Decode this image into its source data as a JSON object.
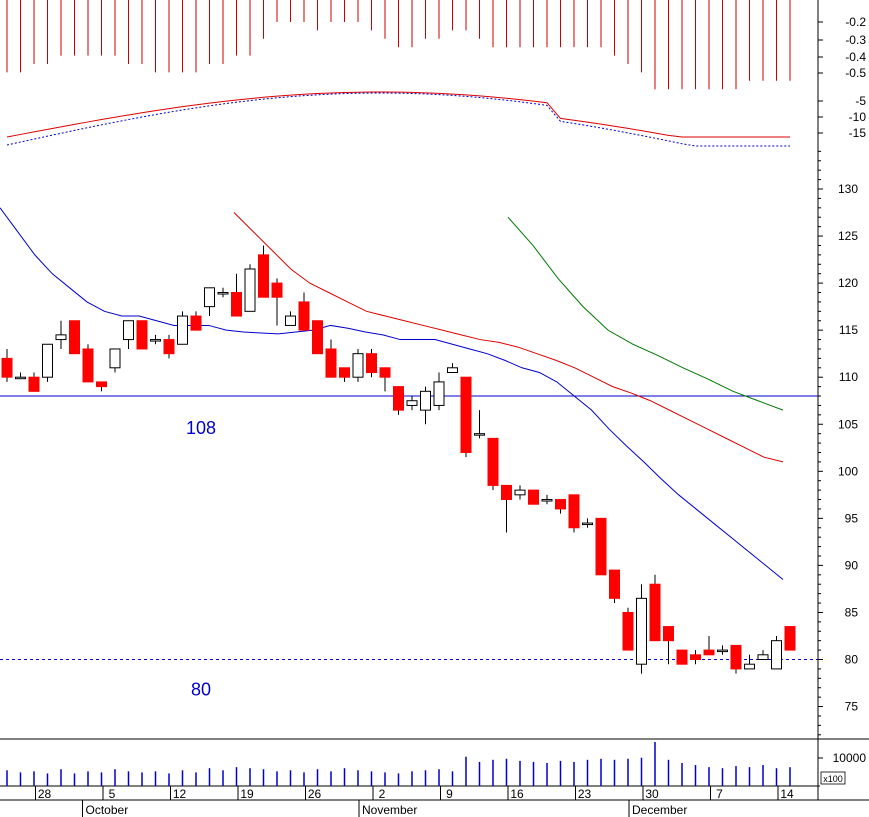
{
  "chart_data": {
    "type": "candlestick",
    "colors": {
      "down_fill": "#ff0000",
      "up_fill": "#ffffff",
      "outline": "#000000",
      "ma_short": "#0000cc",
      "ma_mid": "#dd0000",
      "ma_long": "#007700",
      "level_line": "#0000cc",
      "volume_bar": "#0000cc",
      "indicator_bar": "#cc0000"
    },
    "reference_lines": [
      {
        "value": 108,
        "label": "108",
        "style": "solid"
      },
      {
        "value": 80,
        "label": "80",
        "style": "dashed"
      }
    ],
    "price_axis": {
      "range": [
        71,
        146
      ],
      "ticks": [
        "130",
        "125",
        "120",
        "115",
        "110",
        "105",
        "100",
        "95",
        "90",
        "85",
        "80",
        "75"
      ]
    },
    "indicator_axis": {
      "ticks": [
        "-0.2",
        "-0.3",
        "-0.4",
        "-0.5",
        "-5",
        "-10",
        "-15"
      ]
    },
    "volume_axis": {
      "ticks": [
        "10000"
      ],
      "unit": "x100"
    },
    "x_axis": {
      "day_labels": [
        {
          "text": "28",
          "index": 3
        },
        {
          "text": "5",
          "index": 8
        },
        {
          "text": "12",
          "index": 13
        },
        {
          "text": "19",
          "index": 18
        },
        {
          "text": "26",
          "index": 23
        },
        {
          "text": "2",
          "index": 28
        },
        {
          "text": "9",
          "index": 33
        },
        {
          "text": "16",
          "index": 38
        },
        {
          "text": "23",
          "index": 43
        },
        {
          "text": "30",
          "index": 48
        },
        {
          "text": "7",
          "index": 53
        },
        {
          "text": "14",
          "index": 58
        }
      ],
      "month_labels": [
        {
          "text": "October",
          "index": 7
        },
        {
          "text": "November",
          "index": 28
        },
        {
          "text": "December",
          "index": 48
        }
      ]
    },
    "candles": [
      [
        112,
        113,
        109.5,
        110
      ],
      [
        110,
        110.5,
        110,
        110
      ],
      [
        110,
        110.5,
        108.5,
        108.5
      ],
      [
        110,
        113.5,
        109.5,
        113.5
      ],
      [
        114,
        116,
        113,
        114.5
      ],
      [
        116,
        116,
        112.5,
        112.5
      ],
      [
        113,
        113.5,
        109.5,
        109.5
      ],
      [
        109.5,
        109.5,
        108.5,
        109
      ],
      [
        111,
        113,
        110.5,
        113
      ],
      [
        114,
        116,
        113,
        116
      ],
      [
        116,
        116,
        113,
        113
      ],
      [
        114,
        114.5,
        113.5,
        114
      ],
      [
        114,
        114.5,
        112,
        112.5
      ],
      [
        113.5,
        117,
        113.5,
        116.5
      ],
      [
        116.5,
        117,
        115,
        115
      ],
      [
        117.5,
        119.5,
        116.5,
        119.5
      ],
      [
        119,
        119.5,
        118.5,
        119
      ],
      [
        119,
        121,
        116.5,
        116.5
      ],
      [
        117,
        122,
        117,
        121.5
      ],
      [
        123,
        124,
        118.5,
        118.5
      ],
      [
        120,
        120.5,
        115.5,
        118.5
      ],
      [
        115.5,
        117,
        115.5,
        116.5
      ],
      [
        118,
        119,
        115,
        115
      ],
      [
        116,
        116,
        112.5,
        112.5
      ],
      [
        113,
        114,
        110,
        110
      ],
      [
        111,
        111,
        109.5,
        110
      ],
      [
        110,
        113,
        109.5,
        112.5
      ],
      [
        112.5,
        113,
        110,
        110.5
      ],
      [
        111,
        111,
        108.5,
        110
      ],
      [
        109,
        109,
        106,
        106.5
      ],
      [
        107,
        108,
        106.5,
        107.5
      ],
      [
        106.5,
        109,
        105,
        108.5
      ],
      [
        107,
        110.5,
        106.5,
        109.5
      ],
      [
        110.5,
        111.5,
        110.5,
        111
      ],
      [
        110,
        110,
        101.5,
        102
      ],
      [
        104,
        106.5,
        103.5,
        104
      ],
      [
        103.5,
        103.5,
        98,
        98.5
      ],
      [
        98.5,
        98.5,
        93.5,
        97
      ],
      [
        97.5,
        98.5,
        97,
        98
      ],
      [
        98,
        98,
        96.5,
        96.5
      ],
      [
        97,
        97.5,
        96.5,
        97
      ],
      [
        97,
        97,
        95.5,
        96
      ],
      [
        97.5,
        97.5,
        93.5,
        94
      ],
      [
        94.5,
        95,
        94,
        94.5
      ],
      [
        95,
        95,
        89,
        89
      ],
      [
        89.5,
        89.5,
        86,
        86.5
      ],
      [
        85,
        85.5,
        81,
        81
      ],
      [
        79.5,
        88,
        78.5,
        86.5
      ],
      [
        88,
        89,
        82,
        82
      ],
      [
        83.5,
        83.5,
        79.5,
        82
      ],
      [
        81,
        81,
        79.5,
        79.5
      ],
      [
        80.5,
        81,
        79.5,
        80
      ],
      [
        81,
        82.5,
        80.5,
        80.5
      ],
      [
        81,
        81.5,
        80.5,
        81
      ],
      [
        81.5,
        81.5,
        78.5,
        79
      ],
      [
        79,
        80.5,
        79,
        79.5
      ],
      [
        80,
        81,
        80,
        80.5
      ],
      [
        79,
        82.5,
        79,
        82
      ],
      [
        83.5,
        83.5,
        81,
        81
      ]
    ],
    "ma_short": [
      128,
      125.5,
      123,
      121,
      119.5,
      118,
      117,
      116.5,
      116.5,
      116,
      115.5,
      115.5,
      115.5,
      115,
      114.8,
      114.7,
      114.6,
      114.8,
      115,
      115.5,
      115.2,
      114.8,
      114.5,
      114,
      114,
      114,
      113.5,
      113,
      112.5,
      111.8,
      111,
      110.5,
      109.5,
      108,
      106.5,
      104.5,
      102.7,
      101,
      99.2,
      97.5,
      96,
      94.5,
      93,
      91.5,
      90,
      88.5
    ],
    "ma_mid": [
      127.5,
      125.5,
      123.5,
      121.5,
      120,
      119,
      118,
      117,
      116.5,
      116,
      115.5,
      115,
      114.5,
      114,
      113.7,
      113.2,
      112.5,
      111.8,
      111,
      110,
      109,
      108.3,
      107.5,
      106.5,
      105.5,
      104.5,
      103.5,
      102.5,
      101.5,
      101
    ],
    "ma_long": [
      127,
      124,
      120.5,
      117.5,
      115,
      113.5,
      112.3,
      111,
      109.8,
      108.5,
      107.5,
      106.5
    ],
    "indicator_bars": [
      -0.5,
      -0.5,
      -0.45,
      -0.45,
      -0.4,
      -0.4,
      -0.4,
      -0.4,
      -0.4,
      -0.45,
      -0.45,
      -0.5,
      -0.5,
      -0.5,
      -0.5,
      -0.45,
      -0.45,
      -0.4,
      -0.4,
      -0.3,
      -0.2,
      -0.2,
      -0.2,
      -0.25,
      -0.2,
      -0.2,
      -0.2,
      -0.25,
      -0.3,
      -0.35,
      -0.35,
      -0.3,
      -0.3,
      -0.25,
      -0.25,
      -0.3,
      -0.35,
      -0.35,
      -0.35,
      -0.35,
      -0.35,
      -0.35,
      -0.35,
      -0.35,
      -0.35,
      -0.4,
      -0.45,
      -0.5,
      -0.6,
      -0.6,
      -0.6,
      -0.6,
      -0.6,
      -0.6,
      -0.6,
      -0.55,
      -0.55,
      -0.55,
      -0.55
    ],
    "volume": [
      150,
      130,
      140,
      120,
      160,
      120,
      140,
      130,
      160,
      140,
      130,
      140,
      120,
      150,
      130,
      170,
      150,
      180,
      170,
      160,
      140,
      150,
      130,
      160,
      140,
      170,
      150,
      140,
      130,
      120,
      140,
      150,
      160,
      140,
      280,
      230,
      250,
      260,
      240,
      230,
      220,
      240,
      230,
      250,
      260,
      250,
      260,
      270,
      420,
      250,
      220,
      200,
      180,
      170,
      190,
      180,
      200,
      170,
      180
    ]
  }
}
